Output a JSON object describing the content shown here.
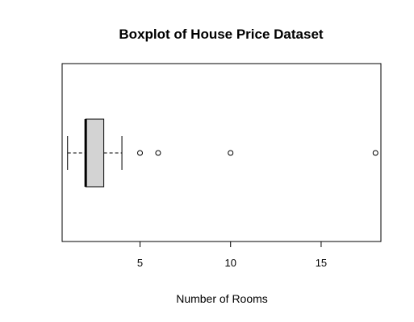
{
  "chart_data": {
    "type": "boxplot",
    "orientation": "horizontal",
    "title": "Boxplot of House Price Dataset",
    "xlabel": "Number of Rooms",
    "ylabel": "",
    "xlim": [
      0.7,
      18.3
    ],
    "xticks": [
      5,
      10,
      15
    ],
    "grid": false,
    "box": {
      "whisker_low": 1,
      "q1": 2,
      "median": 2,
      "q3": 3,
      "whisker_high": 4,
      "fill": "#d3d3d3"
    },
    "outliers": [
      5,
      6,
      10,
      18
    ]
  }
}
